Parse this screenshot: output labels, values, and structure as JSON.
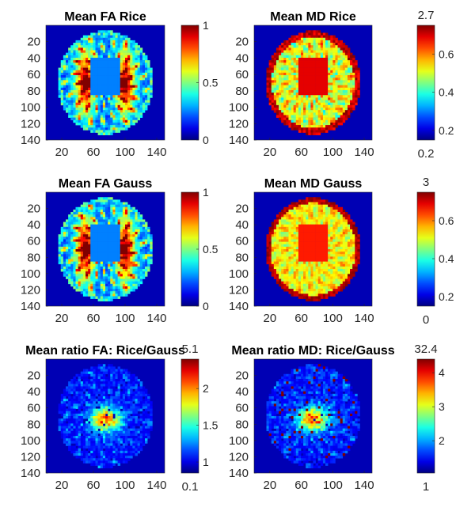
{
  "colors": {
    "background": "#0000b4",
    "axis": "#262626"
  },
  "chart_data": [
    {
      "type": "heatmap",
      "title": "Mean FA Rice",
      "image_kind": "fa",
      "xlim": [
        0,
        150
      ],
      "ylim": [
        0,
        140
      ],
      "xticks": [
        20,
        60,
        100,
        140
      ],
      "yticks": [
        20,
        40,
        60,
        80,
        100,
        120,
        140
      ],
      "colorbar": {
        "ticks": [
          "1",
          "0.5",
          "0"
        ],
        "range": [
          0,
          1
        ],
        "tick_values": [
          1,
          0.5,
          0
        ],
        "top_label": "",
        "bottom_label": ""
      }
    },
    {
      "type": "heatmap",
      "title": "Mean MD Rice",
      "image_kind": "md_rice",
      "xlim": [
        0,
        150
      ],
      "ylim": [
        0,
        140
      ],
      "xticks": [
        20,
        60,
        100,
        140
      ],
      "yticks": [
        20,
        40,
        60,
        80,
        100,
        120,
        140
      ],
      "colorbar": {
        "ticks": [
          "0.6",
          "0.4",
          "0.2"
        ],
        "range": [
          0.15,
          0.75
        ],
        "tick_values": [
          0.6,
          0.4,
          0.2
        ],
        "top_label": "2.7",
        "bottom_label": "0.2"
      }
    },
    {
      "type": "heatmap",
      "title": "Mean FA Gauss",
      "image_kind": "fa",
      "xlim": [
        0,
        150
      ],
      "ylim": [
        0,
        140
      ],
      "xticks": [
        20,
        60,
        100,
        140
      ],
      "yticks": [
        20,
        40,
        60,
        80,
        100,
        120,
        140
      ],
      "colorbar": {
        "ticks": [
          "1",
          "0.5",
          "0"
        ],
        "range": [
          0,
          1
        ],
        "tick_values": [
          1,
          0.5,
          0
        ],
        "top_label": "",
        "bottom_label": ""
      }
    },
    {
      "type": "heatmap",
      "title": "Mean MD Gauss",
      "image_kind": "md_gauss",
      "xlim": [
        0,
        150
      ],
      "ylim": [
        0,
        140
      ],
      "xticks": [
        20,
        60,
        100,
        140
      ],
      "yticks": [
        20,
        40,
        60,
        80,
        100,
        120,
        140
      ],
      "colorbar": {
        "ticks": [
          "0.6",
          "0.4",
          "0.2"
        ],
        "range": [
          0.15,
          0.75
        ],
        "tick_values": [
          0.6,
          0.4,
          0.2
        ],
        "top_label": "3",
        "bottom_label": "0"
      }
    },
    {
      "type": "heatmap",
      "title": "Mean ratio FA: Rice/Gauss",
      "image_kind": "ratio_fa",
      "xlim": [
        0,
        150
      ],
      "ylim": [
        0,
        140
      ],
      "xticks": [
        20,
        60,
        100,
        140
      ],
      "yticks": [
        20,
        40,
        60,
        80,
        100,
        120,
        140
      ],
      "colorbar": {
        "ticks": [
          "2",
          "1.5",
          "1"
        ],
        "range": [
          0.85,
          2.4
        ],
        "tick_values": [
          2,
          1.5,
          1
        ],
        "top_label": "5.1",
        "bottom_label": "0.1"
      }
    },
    {
      "type": "heatmap",
      "title": "Mean ratio MD: Rice/Gauss",
      "image_kind": "ratio_md",
      "xlim": [
        0,
        150
      ],
      "ylim": [
        0,
        140
      ],
      "xticks": [
        20,
        60,
        100,
        140
      ],
      "yticks": [
        20,
        40,
        60,
        80,
        100,
        120,
        140
      ],
      "colorbar": {
        "ticks": [
          "4",
          "3",
          "2"
        ],
        "range": [
          1.05,
          4.4
        ],
        "tick_values": [
          4,
          3,
          2
        ],
        "top_label": "32.4",
        "bottom_label": "1"
      }
    }
  ]
}
